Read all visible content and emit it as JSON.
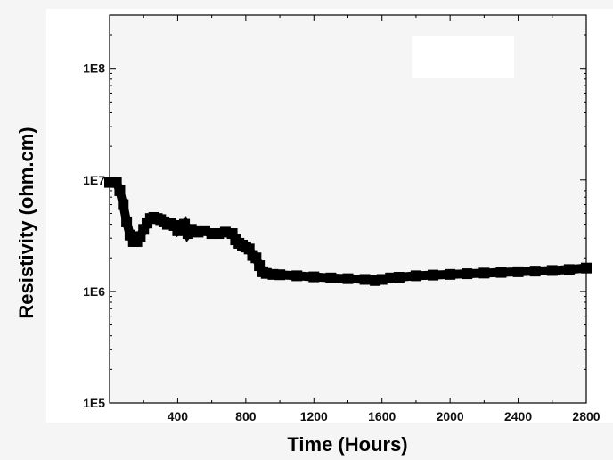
{
  "chart_data": {
    "type": "line",
    "title": "",
    "xlabel": "Time (Hours)",
    "ylabel": "Resistivity (ohm.cm)",
    "xlim": [
      0,
      2800
    ],
    "ylim": [
      100000,
      300000000
    ],
    "y_scale": "log",
    "grid": false,
    "legend": "none",
    "x_ticks": [
      400,
      800,
      1200,
      1600,
      2000,
      2400,
      2800
    ],
    "x_tick_labels": [
      "400",
      "800",
      "1200",
      "1600",
      "2000",
      "2400",
      "2800"
    ],
    "y_ticks": [
      100000,
      1000000,
      10000000,
      100000000
    ],
    "y_tick_labels": [
      "1E5",
      "1E6",
      "1E7",
      "1E8"
    ],
    "colors": {
      "series": "#000000",
      "plot_background": "#f5f5f5",
      "axes": "#000000"
    },
    "series": [
      {
        "x": [
          0,
          40,
          60,
          80,
          100,
          120,
          140,
          160,
          180,
          200,
          220,
          240,
          260,
          280,
          300,
          320,
          340,
          360,
          380,
          400,
          420,
          440,
          460,
          480,
          500,
          520,
          560,
          600,
          640,
          680,
          720,
          740,
          760,
          780,
          800,
          820,
          840,
          860,
          880,
          900,
          920,
          960,
          1000,
          1100,
          1200,
          1300,
          1400,
          1500,
          1560,
          1600,
          1650,
          1700,
          1800,
          1900,
          2000,
          2100,
          2200,
          2300,
          2400,
          2500,
          2600,
          2700,
          2800
        ],
        "y": [
          9500000,
          9500000,
          8000000,
          6000000,
          4200000,
          3200000,
          2800000,
          2800000,
          3100000,
          3600000,
          4100000,
          4500000,
          4600000,
          4500000,
          4400000,
          4200000,
          4000000,
          4100000,
          3900000,
          3500000,
          3700000,
          4000000,
          3300000,
          3600000,
          3500000,
          3400000,
          3500000,
          3300000,
          3300000,
          3400000,
          3300000,
          2900000,
          2700000,
          2600000,
          2500000,
          2400000,
          2100000,
          2000000,
          1700000,
          1500000,
          1450000,
          1420000,
          1410000,
          1380000,
          1350000,
          1320000,
          1300000,
          1280000,
          1250000,
          1280000,
          1320000,
          1340000,
          1380000,
          1400000,
          1420000,
          1440000,
          1460000,
          1480000,
          1500000,
          1520000,
          1540000,
          1570000,
          1620000
        ]
      }
    ]
  }
}
